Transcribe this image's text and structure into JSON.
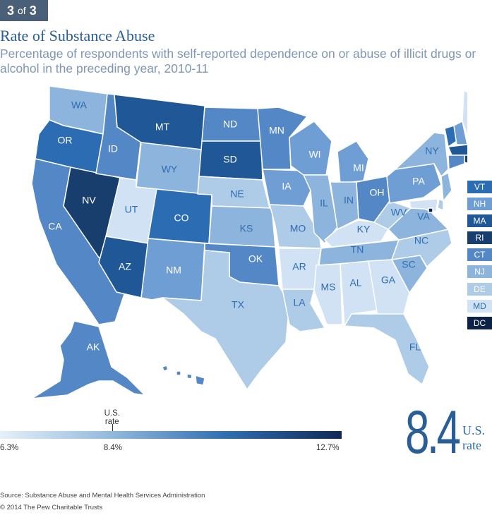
{
  "badge": {
    "current": "3",
    "sep": "of",
    "total": "3"
  },
  "title": "Rate of Substance Abuse",
  "subtitle": "Percentage of respondents with self-reported dependence on or abuse of illicit drugs or alcohol in the preceding year, 2010-11",
  "colors": {
    "scale_low": "#e6f0fa",
    "scale_mid": "#2f6db1",
    "scale_high": "#0f2a57",
    "title": "#2a5e97",
    "subtitle": "#7f97b4"
  },
  "legend": {
    "min_label": "6.3%",
    "us_label": "8.4%",
    "max_label": "12.7%",
    "us_marker": "U.S. rate",
    "min": 6.3,
    "us": 8.4,
    "max": 12.7
  },
  "us_rate": {
    "value": "8.4",
    "label": "U.S. rate"
  },
  "states": [
    {
      "abbr": "WA",
      "shade": 3
    },
    {
      "abbr": "OR",
      "shade": 6
    },
    {
      "abbr": "CA",
      "shade": 5
    },
    {
      "abbr": "NV",
      "shade": 8
    },
    {
      "abbr": "ID",
      "shade": 5
    },
    {
      "abbr": "MT",
      "shade": 7
    },
    {
      "abbr": "WY",
      "shade": 3
    },
    {
      "abbr": "UT",
      "shade": 1
    },
    {
      "abbr": "AZ",
      "shade": 7
    },
    {
      "abbr": "CO",
      "shade": 6
    },
    {
      "abbr": "NM",
      "shade": 4
    },
    {
      "abbr": "ND",
      "shade": 5
    },
    {
      "abbr": "SD",
      "shade": 7
    },
    {
      "abbr": "NE",
      "shade": 2
    },
    {
      "abbr": "KS",
      "shade": 3
    },
    {
      "abbr": "OK",
      "shade": 5
    },
    {
      "abbr": "TX",
      "shade": 2
    },
    {
      "abbr": "MN",
      "shade": 5
    },
    {
      "abbr": "IA",
      "shade": 4
    },
    {
      "abbr": "MO",
      "shade": 2
    },
    {
      "abbr": "AR",
      "shade": 1
    },
    {
      "abbr": "LA",
      "shade": 2
    },
    {
      "abbr": "WI",
      "shade": 4
    },
    {
      "abbr": "IL",
      "shade": 3
    },
    {
      "abbr": "MI",
      "shade": 4
    },
    {
      "abbr": "IN",
      "shade": 3
    },
    {
      "abbr": "OH",
      "shade": 5
    },
    {
      "abbr": "KY",
      "shade": 1
    },
    {
      "abbr": "TN",
      "shade": 3
    },
    {
      "abbr": "MS",
      "shade": 1
    },
    {
      "abbr": "AL",
      "shade": 1
    },
    {
      "abbr": "GA",
      "shade": 1
    },
    {
      "abbr": "FL",
      "shade": 2
    },
    {
      "abbr": "SC",
      "shade": 3
    },
    {
      "abbr": "NC",
      "shade": 2
    },
    {
      "abbr": "VA",
      "shade": 3
    },
    {
      "abbr": "WV",
      "shade": 2
    },
    {
      "abbr": "PA",
      "shade": 4
    },
    {
      "abbr": "NY",
      "shade": 3
    },
    {
      "abbr": "ME",
      "shade": 1
    },
    {
      "abbr": "AK",
      "shade": 5
    },
    {
      "abbr": "HI",
      "shade": 5
    }
  ],
  "ne_states": [
    {
      "abbr": "VT",
      "shade": 6
    },
    {
      "abbr": "NH",
      "shade": 4
    },
    {
      "abbr": "MA",
      "shade": 7
    },
    {
      "abbr": "RI",
      "shade": 8
    },
    {
      "abbr": "CT",
      "shade": 5
    },
    {
      "abbr": "NJ",
      "shade": 3
    },
    {
      "abbr": "DE",
      "shade": 2
    },
    {
      "abbr": "MD",
      "shade": 1
    },
    {
      "abbr": "DC",
      "shade": 9
    }
  ],
  "shade_palette": [
    "#f2f6fb",
    "#d0e2f3",
    "#aecbe7",
    "#8db4dc",
    "#6e9ed3",
    "#5487c6",
    "#2c6cb3",
    "#1f5797",
    "#183e6e",
    "#0c2246"
  ],
  "source": "Source: Substance Abuse and Mental Health Services Administration",
  "copyright": "© 2014 The Pew Charitable Trusts"
}
